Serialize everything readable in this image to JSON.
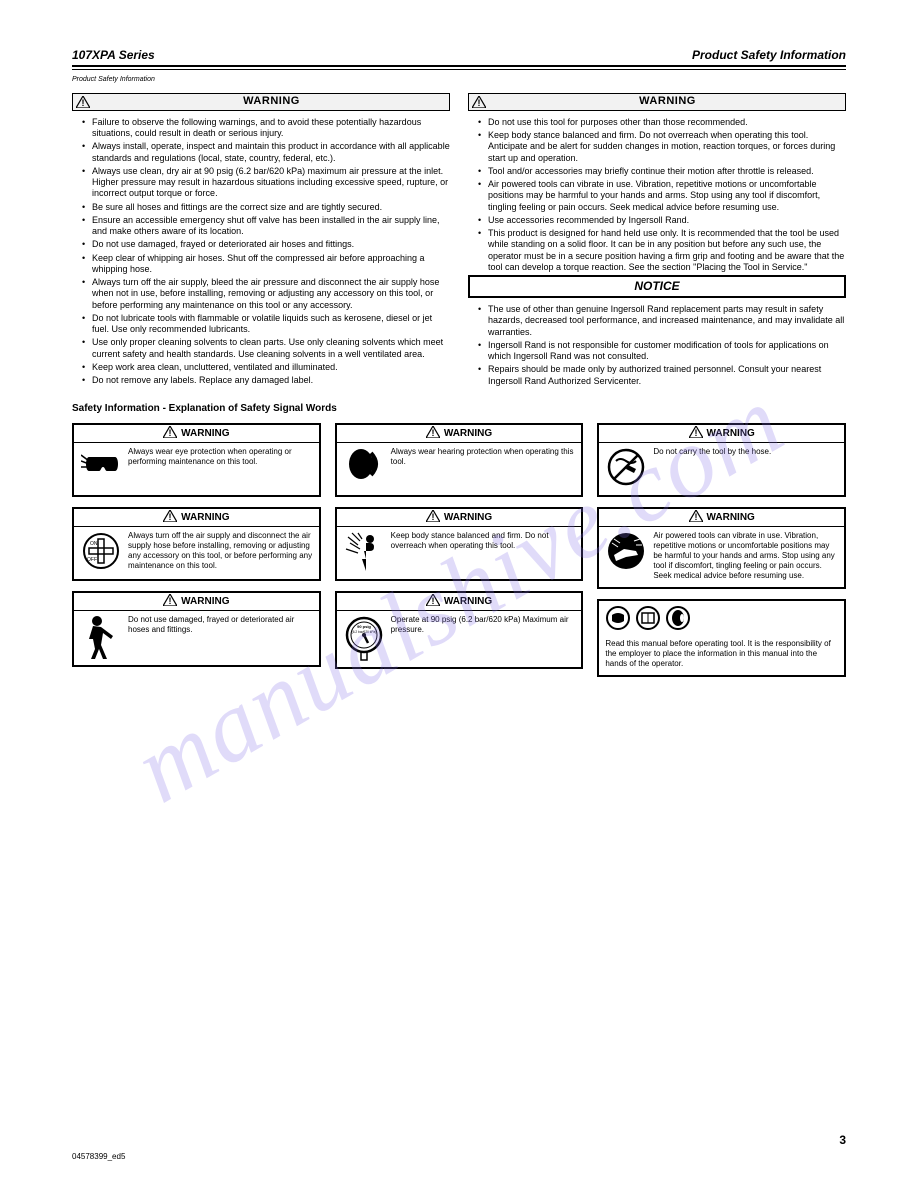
{
  "header": {
    "left": "107XPA Series",
    "right": "Product Safety Information"
  },
  "subhead": "Product Safety Information",
  "warnings": {
    "left": {
      "word": "WARNING",
      "items": [
        "Failure to observe the following warnings, and to avoid these potentially hazardous situations, could result in death or serious injury.",
        "Always install, operate, inspect and maintain this product in accordance with all applicable standards and regulations (local, state, country, federal, etc.).",
        "Always use clean, dry air at 90 psig (6.2 bar/620 kPa) maximum air pressure at the inlet. Higher pressure may result in hazardous situations including excessive speed, rupture, or incorrect output torque or force.",
        "Be sure all hoses and fittings are the correct size and are tightly secured.",
        "Ensure an accessible emergency shut off valve has been installed in the air supply line, and make others aware of its location.",
        "Do not use damaged, frayed or deteriorated air hoses and fittings.",
        "Keep clear of whipping air hoses. Shut off the compressed air before approaching a whipping hose.",
        "Always turn off the air supply, bleed the air pressure and disconnect the air supply hose when not in use, before installing, removing or adjusting any accessory on this tool, or before performing any maintenance on this tool or any accessory.",
        "Do not lubricate tools with flammable or volatile liquids such as kerosene, diesel or jet fuel. Use only recommended lubricants.",
        "Use only proper cleaning solvents to clean parts. Use only cleaning solvents which meet current safety and health standards. Use cleaning solvents in a well ventilated area.",
        "Keep work area clean, uncluttered, ventilated and illuminated.",
        "Do not remove any labels. Replace any damaged label."
      ]
    },
    "right": {
      "word": "WARNING",
      "items": [
        "Do not use this tool for purposes other than those recommended.",
        "Keep body stance balanced and firm. Do not overreach when operating this tool. Anticipate and be alert for sudden changes in motion, reaction torques, or forces during start up and operation.",
        "Tool and/or accessories may briefly continue their motion after throttle is released.",
        "Air powered tools can vibrate in use. Vibration, repetitive motions or uncomfortable positions may be harmful to your hands and arms. Stop using any tool if discomfort, tingling feeling or pain occurs. Seek medical advice before resuming use.",
        "Use accessories recommended by Ingersoll Rand.",
        "This product is designed for hand held use only. It is recommended that the tool be used while standing on a solid floor. It can be in any position but before any such use, the operator must be in a secure position having a firm grip and footing and be aware that the tool can develop a torque reaction. See the section \"Placing the Tool in Service.\""
      ],
      "notice_word": "NOTICE",
      "notice_items": [
        "The use of other than genuine Ingersoll Rand replacement parts may result in safety hazards, decreased tool performance, and increased maintenance, and may invalidate all warranties.",
        "Ingersoll Rand is not responsible for customer modification of tools for applications on which Ingersoll Rand was not consulted.",
        "Repairs should be made only by authorized trained personnel. Consult your nearest Ingersoll Rand Authorized Servicenter."
      ]
    }
  },
  "safety_heading": "Safety Information - Explanation of Safety Signal Words",
  "panels": {
    "col1": [
      {
        "word": "WARNING",
        "icon": "goggles",
        "text": "Always wear eye protection when operating or performing maintenance on this tool."
      },
      {
        "word": "WARNING",
        "icon": "valve",
        "text": "Always turn off the air supply and disconnect the air supply hose before installing, removing or adjusting any accessory on this tool, or before performing any maintenance on this tool."
      },
      {
        "word": "WARNING",
        "icon": "person",
        "text": "Do not use damaged, frayed or deteriorated air hoses and fittings."
      }
    ],
    "col2": [
      {
        "word": "WARNING",
        "icon": "ear",
        "text": "Always wear hearing protection when operating this tool."
      },
      {
        "word": "WARNING",
        "icon": "whip",
        "text": "Keep body stance balanced and firm. Do not overreach when operating this tool."
      },
      {
        "word": "WARNING",
        "icon": "gauge",
        "text": "Operate at 90 psig (6.2 bar/620 kPa) Maximum air pressure."
      }
    ],
    "col3": [
      {
        "word": "WARNING",
        "icon": "nocarry",
        "text": "Do not carry the tool by the hose."
      },
      {
        "word": "WARNING",
        "icon": "vibe",
        "text": "Air powered tools can vibrate in use. Vibration, repetitive motions or uncomfortable positions may be harmful to your hands and arms. Stop using any tool if discomfort, tingling feeling or pain occurs. Seek medical advice before resuming use."
      },
      {
        "word": "",
        "icon": "trio",
        "text": "Read this manual before operating tool. It is the responsibility of the employer to place the information in this manual into the hands of the operator."
      }
    ]
  },
  "footer_num": "3",
  "footer_form": "04578399_ed5"
}
